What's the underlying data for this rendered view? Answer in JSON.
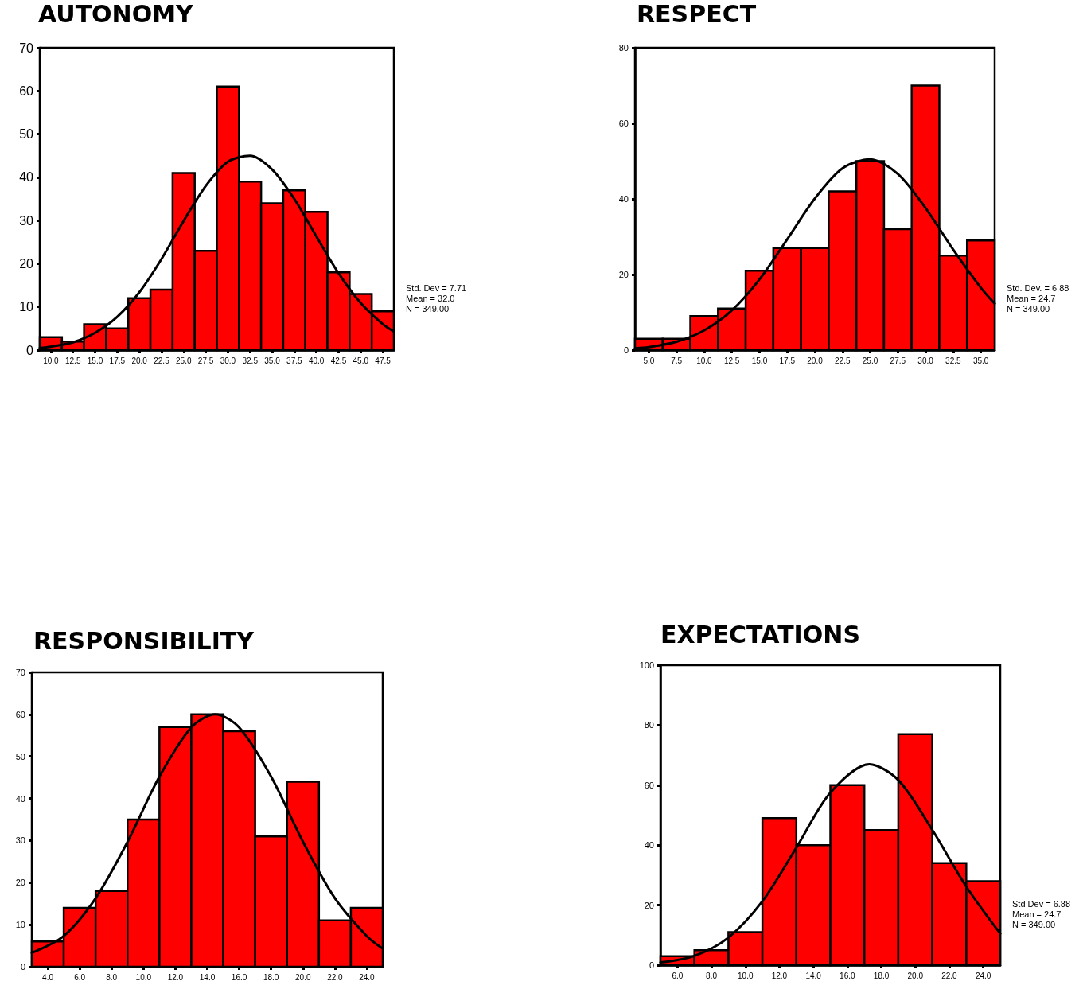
{
  "chart_data": [
    {
      "type": "histogram",
      "title": "AUTONOMY",
      "bins": [
        8.75,
        11.25,
        13.75,
        16.25,
        18.75,
        21.25,
        23.75,
        26.25,
        28.75,
        31.25,
        33.75,
        36.25,
        38.75,
        41.25,
        43.75,
        46.25,
        48.75
      ],
      "series": [
        {
          "type": "histogram",
          "color": "#ff0000",
          "values": [
            3,
            2,
            6,
            5,
            12,
            14,
            41,
            23,
            61,
            39,
            34,
            37,
            32,
            18,
            13,
            9
          ]
        },
        {
          "type": "line",
          "color": "#000000",
          "x": [
            8.75,
            10,
            12.5,
            15,
            17.5,
            20,
            22.5,
            25,
            27.5,
            30,
            32.5,
            35,
            37.5,
            40,
            42.5,
            45,
            47.5,
            48.75
          ],
          "values": [
            0.5,
            0.8,
            1.8,
            4,
            7.7,
            13.4,
            21.1,
            29.9,
            38,
            43.6,
            45,
            41.8,
            35,
            26.3,
            17.8,
            10.9,
            6,
            4.3
          ]
        }
      ],
      "xlim": [
        8.75,
        48.75
      ],
      "xticks": [
        {
          "value": 10,
          "label": "10.0"
        },
        {
          "value": 12.5,
          "label": "12.5"
        },
        {
          "value": 15,
          "label": "15.0"
        },
        {
          "value": 17.5,
          "label": "17.5"
        },
        {
          "value": 20,
          "label": "20.0"
        },
        {
          "value": 22.5,
          "label": "22.5"
        },
        {
          "value": 25,
          "label": "25.0"
        },
        {
          "value": 27.5,
          "label": "27.5"
        },
        {
          "value": 30,
          "label": "30.0"
        },
        {
          "value": 32.5,
          "label": "32.5"
        },
        {
          "value": 35,
          "label": "35.0"
        },
        {
          "value": 37.5,
          "label": "37.5"
        },
        {
          "value": 40,
          "label": "40.0"
        },
        {
          "value": 42.5,
          "label": "42.5"
        },
        {
          "value": 45,
          "label": "45.0"
        },
        {
          "value": 47.5,
          "label": "47.5"
        }
      ],
      "ylim": [
        0,
        70
      ],
      "yticks": [
        0,
        10,
        20,
        30,
        40,
        50,
        60,
        70
      ],
      "annotations": [
        "Std. Dev = 7.71",
        "Mean = 32.0",
        "N = 349.00"
      ],
      "grid": false,
      "marker": "none",
      "line_style": "solid"
    },
    {
      "type": "histogram",
      "title": "RESPECT",
      "bins": [
        3.75,
        6.25,
        8.75,
        11.25,
        13.75,
        16.25,
        18.75,
        21.25,
        23.75,
        26.25,
        28.75,
        31.25,
        33.75,
        36.25
      ],
      "series": [
        {
          "type": "histogram",
          "color": "#ff0000",
          "values": [
            3,
            3,
            9,
            11,
            21,
            27,
            27,
            42,
            50,
            32,
            70,
            25,
            29
          ]
        },
        {
          "type": "line",
          "color": "#000000",
          "x": [
            3.75,
            5,
            7.5,
            10,
            12.5,
            15,
            17.5,
            20,
            22.5,
            25,
            27.5,
            30,
            32.5,
            35,
            36.25
          ],
          "values": [
            0.5,
            0.8,
            2.2,
            5.2,
            10.5,
            18.7,
            29.3,
            40.1,
            48.1,
            50.5,
            46.6,
            37.6,
            26.6,
            16.5,
            12.3
          ]
        }
      ],
      "xlim": [
        3.75,
        36.25
      ],
      "xticks": [
        {
          "value": 5,
          "label": "5.0"
        },
        {
          "value": 7.5,
          "label": "7.5"
        },
        {
          "value": 10,
          "label": "10.0"
        },
        {
          "value": 12.5,
          "label": "12.5"
        },
        {
          "value": 15,
          "label": "15.0"
        },
        {
          "value": 17.5,
          "label": "17.5"
        },
        {
          "value": 20,
          "label": "20.0"
        },
        {
          "value": 22.5,
          "label": "22.5"
        },
        {
          "value": 25,
          "label": "25.0"
        },
        {
          "value": 27.5,
          "label": "27.5"
        },
        {
          "value": 30,
          "label": "30.0"
        },
        {
          "value": 32.5,
          "label": "32.5"
        },
        {
          "value": 35,
          "label": "35.0"
        }
      ],
      "ylim": [
        0,
        80
      ],
      "yticks": [
        0,
        20,
        40,
        60,
        80
      ],
      "annotations": [
        "Std. Dev. = 6.88",
        "Mean = 24.7",
        "N = 349.00"
      ],
      "grid": false,
      "marker": "none",
      "line_style": "solid"
    },
    {
      "type": "histogram",
      "title": "RESPONSIBILITY",
      "bins": [
        3,
        5,
        7,
        9,
        11,
        13,
        15,
        17,
        19,
        21,
        23,
        25
      ],
      "series": [
        {
          "type": "histogram",
          "color": "#ff0000",
          "values": [
            6,
            14,
            18,
            35,
            57,
            60,
            56,
            31,
            44,
            11,
            14
          ]
        },
        {
          "type": "line",
          "color": "#000000",
          "x": [
            3,
            5,
            7,
            9,
            11,
            13,
            14.5,
            16,
            18,
            20,
            22,
            24,
            25
          ],
          "values": [
            3.3,
            7.3,
            16.3,
            29.7,
            45.2,
            56.9,
            60,
            56.9,
            45.2,
            29.7,
            16.3,
            7.3,
            4.3
          ]
        }
      ],
      "xlim": [
        3,
        25
      ],
      "xticks": [
        {
          "value": 4,
          "label": "4.0"
        },
        {
          "value": 6,
          "label": "6.0"
        },
        {
          "value": 8,
          "label": "8.0"
        },
        {
          "value": 10,
          "label": "10.0"
        },
        {
          "value": 12,
          "label": "12.0"
        },
        {
          "value": 14,
          "label": "14.0"
        },
        {
          "value": 16,
          "label": "16.0"
        },
        {
          "value": 18,
          "label": "18.0"
        },
        {
          "value": 20,
          "label": "20.0"
        },
        {
          "value": 22,
          "label": "22.0"
        },
        {
          "value": 24,
          "label": "24.0"
        }
      ],
      "ylim": [
        0,
        70
      ],
      "yticks": [
        0,
        10,
        20,
        30,
        40,
        50,
        60,
        70
      ],
      "grid": false,
      "marker": "none",
      "line_style": "solid"
    },
    {
      "type": "histogram",
      "title": "EXPECTATIONS",
      "bins": [
        5,
        7,
        9,
        11,
        13,
        15,
        17,
        19,
        21,
        23,
        25
      ],
      "series": [
        {
          "type": "histogram",
          "color": "#ff0000",
          "values": [
            3,
            5,
            11,
            49,
            40,
            60,
            45,
            77,
            34,
            28
          ]
        },
        {
          "type": "line",
          "color": "#000000",
          "x": [
            5,
            7,
            9,
            11,
            13,
            15,
            17.3,
            19,
            21,
            23,
            25
          ],
          "values": [
            0.9,
            3.1,
            9.2,
            21.3,
            39.2,
            57.5,
            67,
            61.7,
            45.1,
            26.2,
            10.5
          ]
        }
      ],
      "xlim": [
        5,
        25
      ],
      "xticks": [
        {
          "value": 6,
          "label": "6.0"
        },
        {
          "value": 8,
          "label": "8.0"
        },
        {
          "value": 10,
          "label": "10.0"
        },
        {
          "value": 12,
          "label": "12.0"
        },
        {
          "value": 14,
          "label": "14.0"
        },
        {
          "value": 16,
          "label": "16.0"
        },
        {
          "value": 18,
          "label": "18.0"
        },
        {
          "value": 20,
          "label": "20.0"
        },
        {
          "value": 22,
          "label": "22.0"
        },
        {
          "value": 24,
          "label": "24.0"
        }
      ],
      "ylim": [
        0,
        100
      ],
      "yticks": [
        0,
        20,
        40,
        60,
        80,
        100
      ],
      "annotations": [
        "Std Dev = 6.88",
        "Mean = 24.7",
        "N = 349.00"
      ],
      "grid": false,
      "marker": "none",
      "line_style": "solid"
    }
  ]
}
